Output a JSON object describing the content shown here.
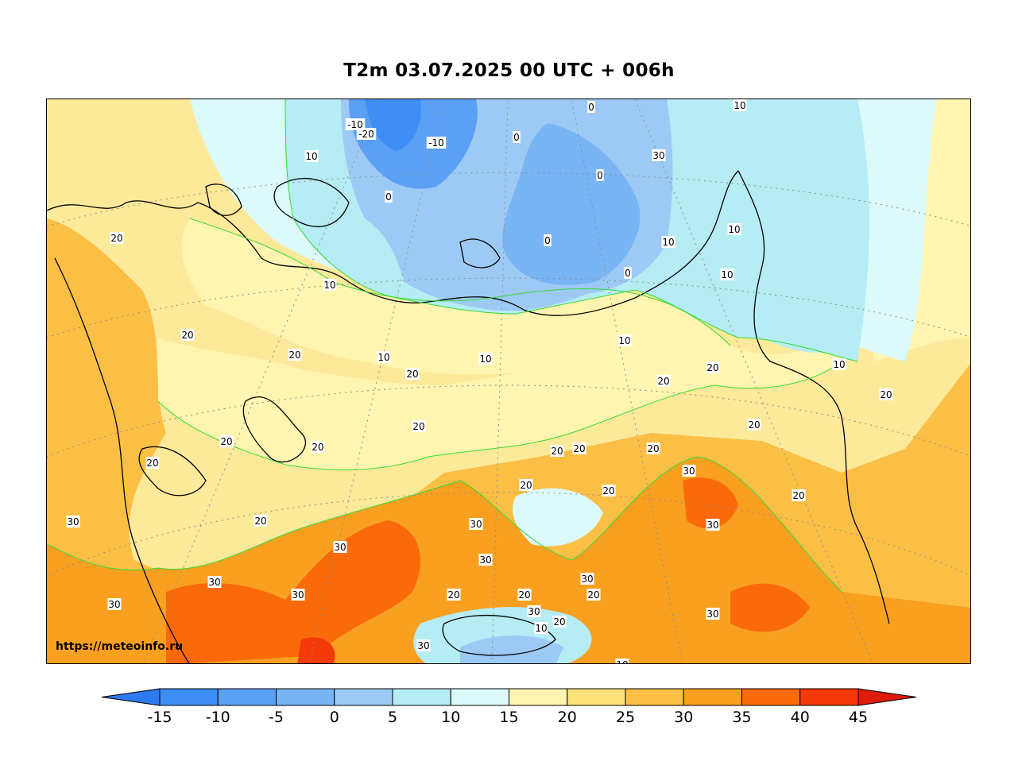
{
  "title": "T2m 03.07.2025 00 UTC + 006h",
  "watermark": "https://meteoinfo.ru",
  "colorbar": {
    "bins": [
      {
        "min": -15,
        "max": -10,
        "color": "#3f8ef5"
      },
      {
        "min": -10,
        "max": -5,
        "color": "#5ba0f5"
      },
      {
        "min": -5,
        "max": 0,
        "color": "#79b4f5"
      },
      {
        "min": 0,
        "max": 5,
        "color": "#9dcaf5"
      },
      {
        "min": 5,
        "max": 10,
        "color": "#b6ecf4"
      },
      {
        "min": 10,
        "max": 15,
        "color": "#dcfafa"
      },
      {
        "min": 15,
        "max": 20,
        "color": "#fff5b0"
      },
      {
        "min": 20,
        "max": 25,
        "color": "#fde27a"
      },
      {
        "min": 25,
        "max": 30,
        "color": "#fbbf45"
      },
      {
        "min": 30,
        "max": 35,
        "color": "#f9a020"
      },
      {
        "min": 35,
        "max": 40,
        "color": "#fa6a0a"
      },
      {
        "min": 40,
        "max": 45,
        "color": "#f53a0a"
      }
    ],
    "under_color": "#2e7af0",
    "over_color": "#dd1c0a",
    "tick_labels": [
      "-15",
      "-10",
      "-5",
      "0",
      "5",
      "10",
      "15",
      "20",
      "25",
      "30",
      "35",
      "40",
      "45"
    ]
  },
  "contour_labels": [
    "-20",
    "-10",
    "-10",
    "0",
    "0",
    "0",
    "0",
    "0",
    "0",
    "10",
    "10",
    "10",
    "10",
    "10",
    "10",
    "10",
    "10",
    "10",
    "10",
    "10",
    "10",
    "20",
    "20",
    "20",
    "20",
    "20",
    "20",
    "20",
    "20",
    "20",
    "20",
    "20",
    "20",
    "20",
    "20",
    "20",
    "20",
    "20",
    "20",
    "20",
    "20",
    "20",
    "20",
    "20",
    "30",
    "30",
    "30",
    "30",
    "30",
    "30",
    "30",
    "30",
    "30",
    "30",
    "30",
    "30",
    "30",
    "30"
  ]
}
